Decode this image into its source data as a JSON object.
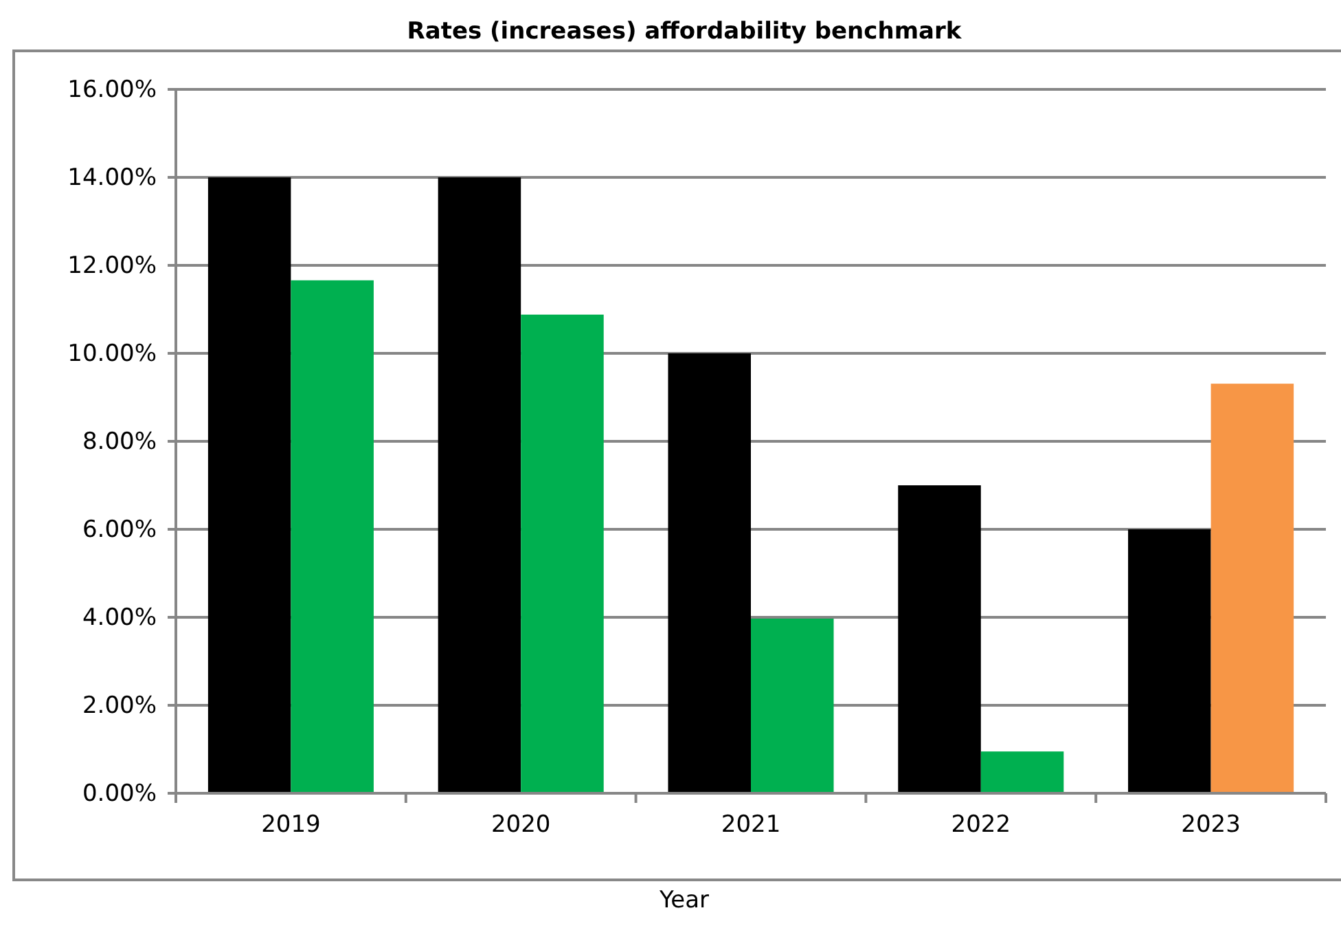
{
  "chart_data": {
    "type": "bar",
    "title": "Rates (increases) affordability benchmark",
    "xlabel": "Year",
    "categories": [
      "2019",
      "2020",
      "2021",
      "2022",
      "2023"
    ],
    "series": [
      {
        "color": "#000000",
        "values": [
          14,
          14,
          10,
          7,
          6
        ]
      },
      {
        "colors": [
          "#00b050",
          "#00b050",
          "#00b050",
          "#00b050",
          "#f79646"
        ],
        "values": [
          11.66,
          10.88,
          3.97,
          0.95,
          9.31
        ]
      }
    ],
    "ylim": [
      0,
      16
    ],
    "yticks": [
      {
        "value": 0,
        "label": "0.00%"
      },
      {
        "value": 2,
        "label": "2.00%"
      },
      {
        "value": 4,
        "label": "4.00%"
      },
      {
        "value": 6,
        "label": "6.00%"
      },
      {
        "value": 8,
        "label": "8.00%"
      },
      {
        "value": 10,
        "label": "10.00%"
      },
      {
        "value": 12,
        "label": "12.00%"
      },
      {
        "value": 14,
        "label": "14.00%"
      },
      {
        "value": 16,
        "label": "16.00%"
      }
    ],
    "grid": "y"
  }
}
